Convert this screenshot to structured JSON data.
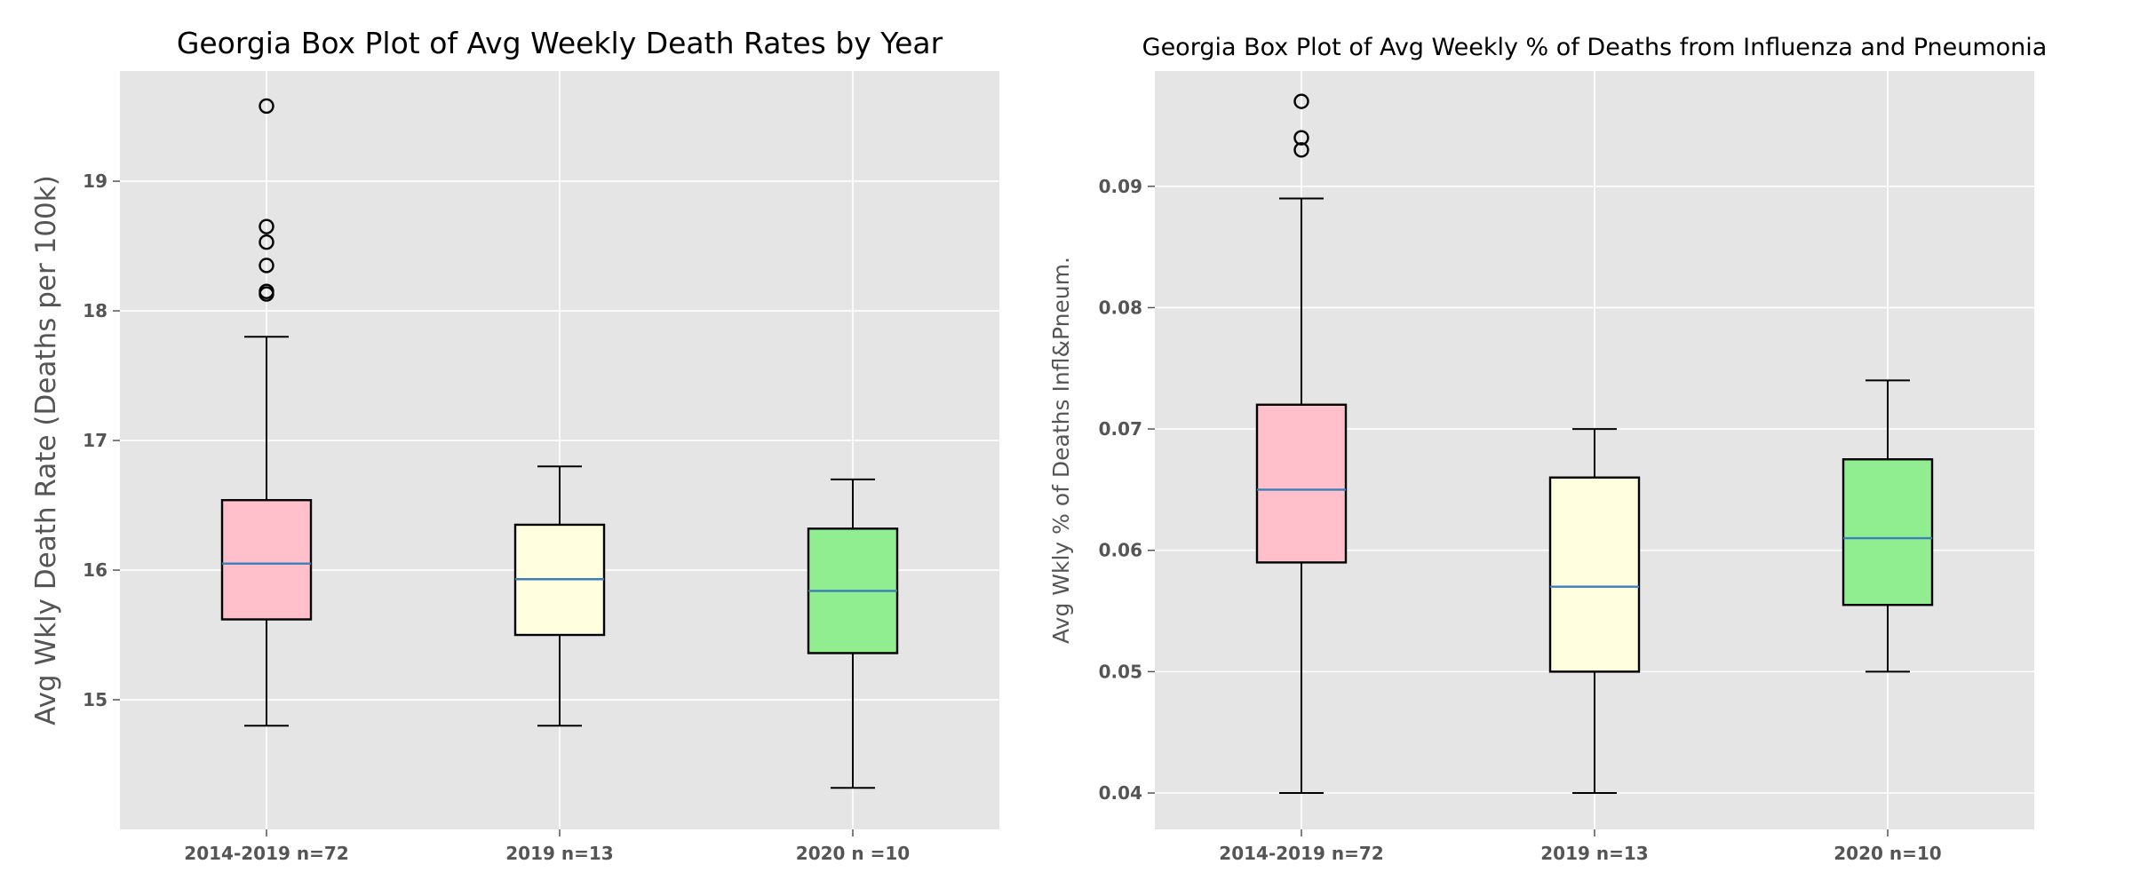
{
  "chart_data": [
    {
      "type": "boxplot",
      "title": "Georgia Box Plot of Avg Weekly Death Rates by Year",
      "xlabel": "",
      "ylabel": "Avg Wkly Death Rate (Deaths per 100k)",
      "ylim": [
        14.0,
        19.85
      ],
      "yticks": [
        15,
        16,
        17,
        18,
        19
      ],
      "ytick_labels": [
        "15",
        "16",
        "17",
        "18",
        "19"
      ],
      "grid": true,
      "categories": [
        "2014-2019 n=72",
        "2019 n=13",
        "2020 n =10"
      ],
      "boxes": [
        {
          "whislo": 14.8,
          "q1": 15.62,
          "med": 16.05,
          "q3": 16.54,
          "whishi": 17.8,
          "fliers": [
            18.13,
            18.15,
            18.35,
            18.53,
            18.65,
            19.58
          ],
          "color": "#ffc0cb"
        },
        {
          "whislo": 14.8,
          "q1": 15.5,
          "med": 15.93,
          "q3": 16.35,
          "whishi": 16.8,
          "fliers": [],
          "color": "#ffffe0"
        },
        {
          "whislo": 14.32,
          "q1": 15.36,
          "med": 15.84,
          "q3": 16.32,
          "whishi": 16.7,
          "fliers": [],
          "color": "#90ee90"
        }
      ]
    },
    {
      "type": "boxplot",
      "title": "Georgia Box Plot of Avg Weekly % of Deaths from Influenza and Pneumonia",
      "xlabel": "",
      "ylabel": "Avg Wkly % of Deaths Infl&Pneum.",
      "ylim": [
        0.037,
        0.0995
      ],
      "yticks": [
        0.04,
        0.05,
        0.06,
        0.07,
        0.08,
        0.09
      ],
      "ytick_labels": [
        "0.04",
        "0.05",
        "0.06",
        "0.07",
        "0.08",
        "0.09"
      ],
      "grid": true,
      "categories": [
        "2014-2019 n=72",
        "2019 n=13",
        "2020 n=10"
      ],
      "boxes": [
        {
          "whislo": 0.04,
          "q1": 0.059,
          "med": 0.065,
          "q3": 0.072,
          "whishi": 0.089,
          "fliers": [
            0.093,
            0.094,
            0.097
          ],
          "color": "#ffc0cb"
        },
        {
          "whislo": 0.04,
          "q1": 0.05,
          "med": 0.057,
          "q3": 0.066,
          "whishi": 0.07,
          "fliers": [],
          "color": "#ffffe0"
        },
        {
          "whislo": 0.05,
          "q1": 0.0555,
          "med": 0.061,
          "q3": 0.0675,
          "whishi": 0.074,
          "fliers": [],
          "color": "#90ee90"
        }
      ]
    }
  ],
  "style": {
    "axes_background": "#e5e5e5",
    "grid_color": "#ffffff",
    "median_color": "#3a7fb8",
    "line_color": "#000000",
    "label_color": "#555555"
  }
}
